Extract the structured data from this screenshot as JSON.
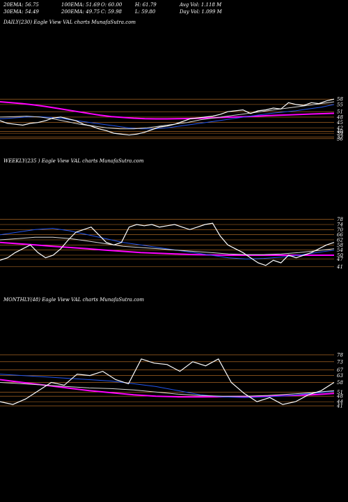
{
  "header": {
    "ema20": "20EMA: 56.75",
    "ema100": "100EMA: 51.69",
    "open": "O: 60.00",
    "high": "H: 61.79",
    "avgvol": "Avg Vol: 1.118 M",
    "ema30": "30EMA: 54.49",
    "ema200": "200EMA: 49.75",
    "close": "C: 59.98",
    "low": "L: 59.80",
    "dayvol": "Day Vol: 1.099 M"
  },
  "colors": {
    "background": "#000000",
    "price": "#ffffff",
    "ema_magenta": "#ff00ff",
    "ema_blue": "#2255ee",
    "grid": "#c8782a"
  },
  "chart_data": [
    {
      "type": "line",
      "title": "DAILY(230) Eagle  View  VAL  charts MunafaSutra.com",
      "ylim": [
        34,
        60
      ],
      "yticks": [
        58,
        55,
        51,
        48,
        45,
        42,
        40,
        39,
        37,
        36
      ],
      "grid": true,
      "series": [
        {
          "role": "price",
          "color": "#ffffff",
          "values": [
            46.0,
            44.5,
            44.0,
            43.5,
            44.5,
            45.0,
            46.0,
            47.5,
            48.0,
            47.0,
            46.0,
            44.0,
            43.0,
            41.5,
            40.5,
            39.0,
            38.5,
            38.0,
            38.5,
            39.5,
            41.0,
            42.5,
            43.0,
            44.0,
            45.5,
            47.0,
            47.5,
            48.0,
            48.5,
            49.5,
            51.0,
            51.5,
            52.0,
            50.0,
            51.5,
            52.0,
            53.0,
            52.5,
            56.0,
            55.0,
            54.5,
            56.0,
            55.5,
            57.0,
            58.0
          ]
        },
        {
          "role": "ema",
          "color": "#ff00ff",
          "values": [
            56.5,
            56.0,
            55.5,
            54.8,
            54.0,
            53.0,
            52.0,
            51.0,
            50.0,
            49.0,
            48.3,
            47.8,
            47.4,
            47.1,
            47.0,
            47.0,
            47.1,
            47.2,
            47.4,
            47.6,
            47.8,
            48.0,
            48.2,
            48.5,
            48.8,
            49.0,
            49.2,
            49.5,
            49.7,
            49.9,
            50.1
          ]
        },
        {
          "role": "ema",
          "color": "#2255ee",
          "values": [
            47.0,
            47.5,
            48.0,
            48.2,
            47.8,
            47.0,
            46.0,
            45.0,
            44.0,
            43.0,
            42.0,
            41.5,
            41.5,
            42.0,
            43.0,
            44.0,
            45.0,
            46.0,
            47.0,
            48.0,
            49.0,
            50.0,
            50.8,
            51.5,
            52.5,
            53.5,
            55.0
          ]
        },
        {
          "role": "ema",
          "color": "#d9d9d9",
          "values": [
            48.0,
            48.2,
            48.5,
            48.0,
            47.0,
            45.5,
            44.0,
            43.0,
            42.0,
            41.5,
            41.5,
            42.0,
            43.0,
            44.0,
            45.0,
            46.5,
            47.5,
            48.5,
            49.5,
            50.5,
            51.5,
            52.5,
            53.5,
            54.5,
            55.5,
            56.5
          ]
        }
      ]
    },
    {
      "type": "line",
      "title": "WEEKLY(235                    ) Eagle  View  VAL  charts MunafaSutra.com",
      "ylim": [
        38,
        80
      ],
      "yticks": [
        78,
        74,
        70,
        66,
        62,
        58,
        54,
        50,
        47,
        41
      ],
      "grid": true,
      "series": [
        {
          "role": "price",
          "color": "#ffffff",
          "values": [
            46.0,
            48.0,
            52.0,
            55.0,
            58.0,
            52.0,
            48.0,
            50.0,
            55.0,
            62.0,
            68.0,
            70.0,
            72.0,
            66.0,
            60.0,
            58.0,
            60.0,
            72.0,
            74.0,
            73.0,
            74.0,
            72.0,
            73.0,
            74.0,
            72.0,
            70.0,
            72.0,
            74.0,
            75.0,
            65.0,
            58.0,
            55.0,
            52.0,
            48.0,
            44.0,
            42.0,
            46.0,
            44.0,
            50.0,
            48.0,
            50.0,
            52.0,
            55.0,
            58.0,
            60.0
          ]
        },
        {
          "role": "ema",
          "color": "#ff00ff",
          "values": [
            60.0,
            59.0,
            58.0,
            57.0,
            56.0,
            55.0,
            54.0,
            53.0,
            52.0,
            51.5,
            51.0,
            50.5,
            50.2,
            50.0,
            50.0,
            50.0,
            50.0,
            50.0,
            50.0,
            50.0
          ]
        },
        {
          "role": "ema",
          "color": "#2255ee",
          "values": [
            66.0,
            68.0,
            70.0,
            71.0,
            69.0,
            66.0,
            63.0,
            60.0,
            58.0,
            56.0,
            54.0,
            52.0,
            50.0,
            48.0,
            47.0,
            47.5,
            48.5,
            50.0,
            52.0,
            54.0
          ]
        },
        {
          "role": "ema",
          "color": "#d9d9d9",
          "values": [
            62.0,
            63.0,
            64.0,
            64.0,
            63.0,
            61.0,
            59.0,
            57.0,
            56.0,
            55.0,
            54.0,
            53.0,
            52.0,
            51.0,
            50.5,
            50.5,
            51.0,
            52.0,
            53.5,
            55.0
          ]
        }
      ]
    },
    {
      "type": "line",
      "title": "MONTHLY(48) Eagle  View  VAL  charts MunafaSutra.com",
      "ylim": [
        38,
        82
      ],
      "yticks": [
        78,
        73,
        67,
        63,
        58,
        51,
        48,
        44,
        41
      ],
      "grid": true,
      "series": [
        {
          "role": "price",
          "color": "#ffffff",
          "values": [
            44.0,
            42.0,
            46.0,
            52.0,
            58.0,
            56.0,
            64.0,
            63.0,
            66.0,
            60.0,
            57.0,
            75.0,
            72.0,
            71.0,
            66.0,
            73.0,
            70.0,
            75.0,
            58.0,
            50.0,
            44.0,
            47.0,
            42.0,
            44.0,
            49.0,
            52.0,
            58.0
          ]
        },
        {
          "role": "ema",
          "color": "#ff00ff",
          "values": [
            60.0,
            58.0,
            56.0,
            54.0,
            52.0,
            50.5,
            49.0,
            48.0,
            47.5,
            47.5,
            47.6,
            47.8,
            48.0,
            48.5,
            49.0,
            50.0
          ]
        },
        {
          "role": "ema",
          "color": "#2255ee",
          "values": [
            64.0,
            63.0,
            62.0,
            61.0,
            60.0,
            59.0,
            57.0,
            55.0,
            52.0,
            49.0,
            47.5,
            47.0,
            47.5,
            48.5,
            50.0,
            51.5
          ]
        },
        {
          "role": "ema",
          "color": "#d9d9d9",
          "values": [
            58.0,
            57.0,
            56.0,
            55.0,
            54.0,
            53.5,
            52.5,
            51.0,
            49.5,
            48.5,
            48.0,
            48.0,
            48.5,
            49.5,
            50.5,
            52.0
          ]
        }
      ]
    }
  ]
}
